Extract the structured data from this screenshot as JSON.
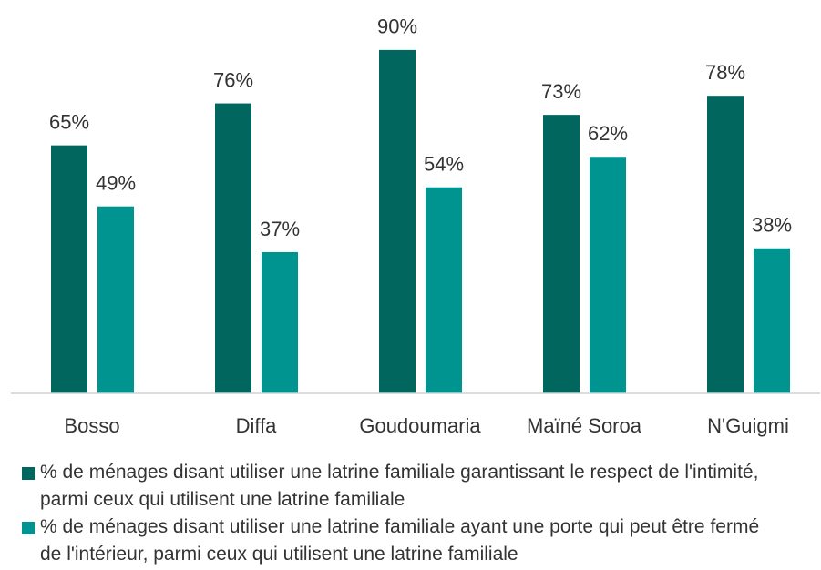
{
  "chart_data": {
    "type": "bar",
    "categories": [
      "Bosso",
      "Diffa",
      "Goudoumaria",
      "Maïné Soroa",
      "N'Guigmi"
    ],
    "series": [
      {
        "name": "% de ménages disant utiliser une latrine familiale garantissant le respect de l'intimité, parmi ceux qui utilisent une latrine familiale",
        "color": "#00665e",
        "values": [
          65,
          76,
          90,
          73,
          78
        ],
        "value_labels": [
          "65%",
          "76%",
          "90%",
          "73%",
          "78%"
        ]
      },
      {
        "name": "% de ménages disant utiliser une latrine familiale ayant une porte qui peut être fermé de l'intérieur, parmi ceux qui utilisent une latrine familiale",
        "color": "#009490",
        "values": [
          49,
          37,
          54,
          62,
          38
        ],
        "value_labels": [
          "49%",
          "37%",
          "54%",
          "62%",
          "38%"
        ]
      }
    ],
    "ylim": [
      0,
      100
    ],
    "legend": "bottom"
  }
}
